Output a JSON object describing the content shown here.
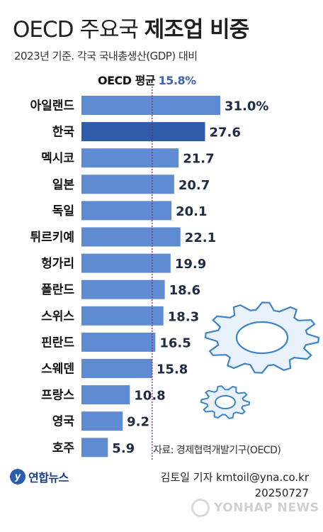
{
  "header": {
    "title_light": "OECD 주요국 ",
    "title_bold": "제조업 비중",
    "subtitle": "2023년 기준. 각국 국내총생산(GDP) 대비"
  },
  "average": {
    "label": "OECD 평균",
    "value_text": "15.8%"
  },
  "chart_data": {
    "type": "bar",
    "orientation": "horizontal",
    "categories": [
      "아일랜드",
      "한국",
      "멕시코",
      "일본",
      "독일",
      "튀르키예",
      "헝가리",
      "폴란드",
      "스위스",
      "핀란드",
      "스웨덴",
      "프랑스",
      "영국",
      "호주"
    ],
    "values": [
      31.0,
      27.6,
      21.7,
      20.7,
      20.1,
      22.1,
      19.9,
      18.6,
      18.3,
      16.5,
      15.8,
      10.8,
      9.2,
      5.9
    ],
    "value_labels": [
      "31.0%",
      "27.6",
      "21.7",
      "20.7",
      "20.1",
      "22.1",
      "19.9",
      "18.6",
      "18.3",
      "16.5",
      "15.8",
      "10.8",
      "9.2",
      "5.9"
    ],
    "reference_line": 15.8,
    "highlight_category": "한국",
    "colors": {
      "bar": "#5f8bd3",
      "highlight": "#2e5ca8",
      "reference_line": "#8a1c5a"
    },
    "grid": false
  },
  "footer": {
    "source": "자료: 경제협력개발기구(OECD)",
    "logo": "연합뉴스",
    "reporter": "김토일 기자 kmtoil@yna.co.kr",
    "date": "20250727",
    "watermark": "YONHAP NEWS"
  }
}
